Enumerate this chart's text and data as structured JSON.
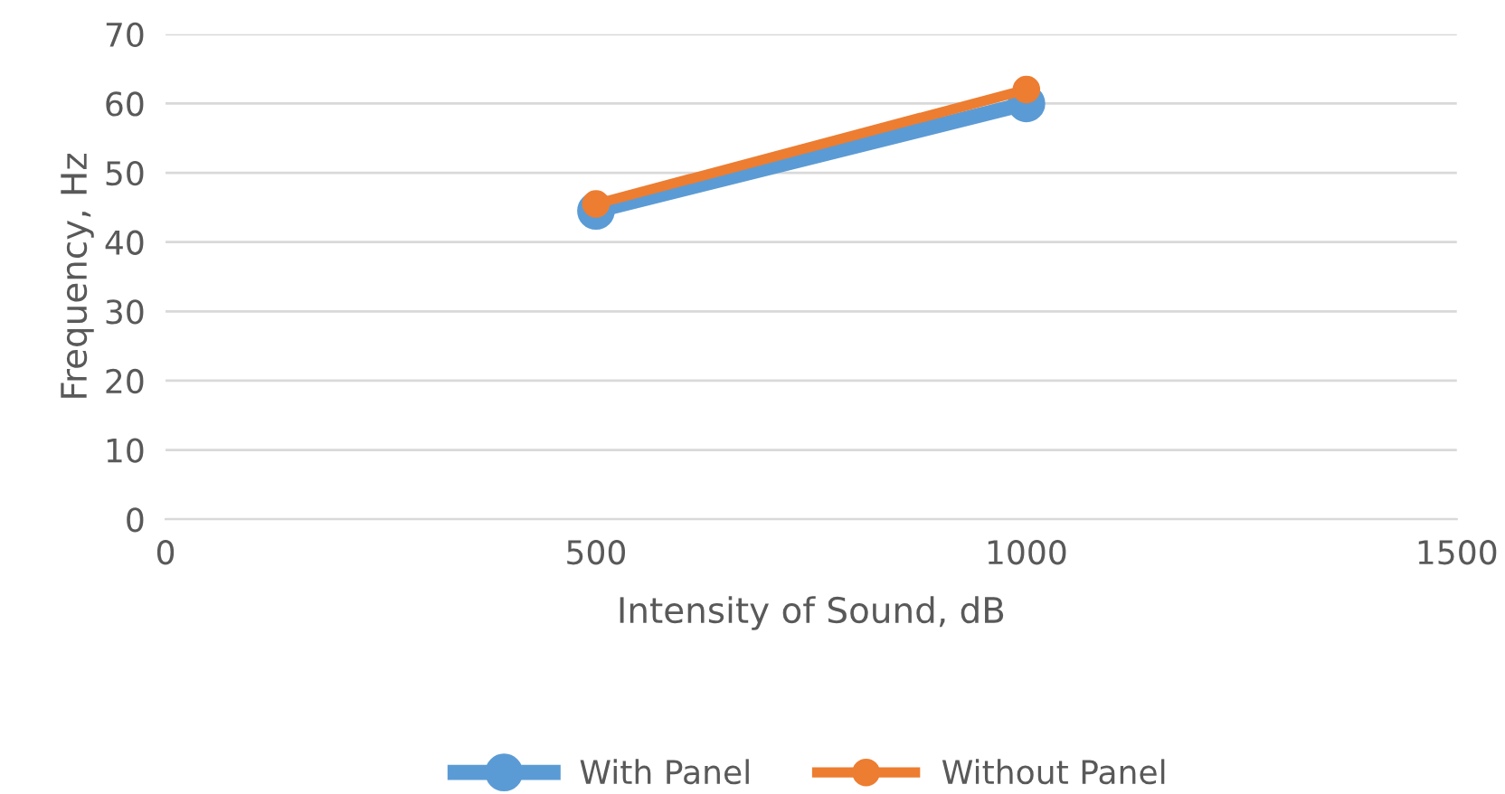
{
  "chart_data": {
    "type": "line",
    "xlabel": "Intensity of Sound, dB",
    "ylabel": "Frequency, Hz",
    "x": [
      500,
      1000
    ],
    "series": [
      {
        "name": "With Panel",
        "color": "#5b9bd5",
        "values": [
          44.5,
          60
        ]
      },
      {
        "name": "Without Panel",
        "color": "#ed7d31",
        "values": [
          45.5,
          62
        ]
      }
    ],
    "xlim": [
      0,
      1500
    ],
    "xticks": [
      0,
      500,
      1000,
      1500
    ],
    "ylim": [
      0,
      70
    ],
    "yticks": [
      0,
      10,
      20,
      30,
      40,
      50,
      60,
      70
    ],
    "grid": "y",
    "legend": "bottom",
    "marker": "circle",
    "line_style": "solid"
  }
}
